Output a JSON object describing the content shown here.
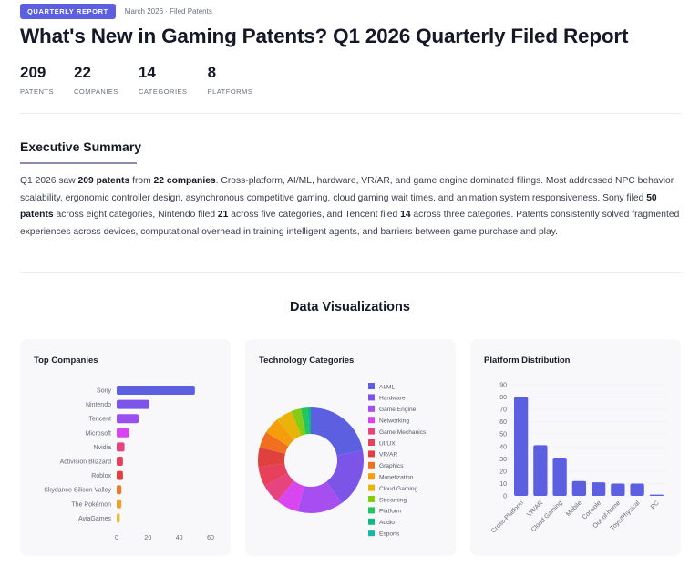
{
  "header": {
    "badge": "QUARTERLY REPORT",
    "meta": "March 2026 · Filed Patents",
    "title": "What's New in Gaming Patents? Q1 2026 Quarterly Filed Report"
  },
  "stats": [
    {
      "value": "209",
      "label": "PATENTS"
    },
    {
      "value": "22",
      "label": "COMPANIES"
    },
    {
      "value": "14",
      "label": "CATEGORIES"
    },
    {
      "value": "8",
      "label": "PLATFORMS"
    }
  ],
  "summary": {
    "title": "Executive Summary",
    "segments": [
      {
        "text": "Q1 2026 saw ",
        "bold": false
      },
      {
        "text": "209 patents",
        "bold": true
      },
      {
        "text": " from ",
        "bold": false
      },
      {
        "text": "22 companies",
        "bold": true
      },
      {
        "text": ". Cross-platform, AI/ML, hardware, VR/AR, and game engine dominated filings. Most addressed NPC behavior scalability, ergonomic controller design, asynchronous competitive gaming, cloud gaming wait times, and animation system responsiveness. Sony filed ",
        "bold": false
      },
      {
        "text": "50 patents",
        "bold": true
      },
      {
        "text": " across eight categories, Nintendo filed ",
        "bold": false
      },
      {
        "text": "21",
        "bold": true
      },
      {
        "text": " across five categories, and Tencent filed ",
        "bold": false
      },
      {
        "text": "14",
        "bold": true
      },
      {
        "text": " across three categories. Patents consistently solved fragmented experiences across devices, computational overhead in training intelligent agents, and barriers between game purchase and play.",
        "bold": false
      }
    ]
  },
  "visualizations": {
    "title": "Data Visualizations"
  },
  "colors": {
    "accent": "#5b5fe0",
    "bar_primary": "#5b5fe0"
  },
  "chart_data": [
    {
      "type": "bar",
      "orientation": "horizontal",
      "title": "Top Companies",
      "categories": [
        "Sony",
        "Nintendo",
        "Tencent",
        "Microsoft",
        "Nvidia",
        "Activision Blizzard",
        "Roblox",
        "Skydance Silicon Valley",
        "The Pokémon",
        "AviaGames"
      ],
      "values": [
        50,
        21,
        14,
        8,
        5,
        4,
        4,
        3,
        3,
        2
      ],
      "colors": [
        "#5b5fe0",
        "#7c55e8",
        "#9b4ff0",
        "#d946ef",
        "#e6447f",
        "#e8405a",
        "#e0413f",
        "#ea7a2a",
        "#efa128",
        "#e8b82c"
      ],
      "xlabel": "",
      "ylabel": "",
      "xticks": [
        0,
        20,
        40,
        60
      ],
      "xlim": [
        0,
        60
      ],
      "grid": false
    },
    {
      "type": "pie",
      "donut": true,
      "title": "Technology Categories",
      "categories": [
        "AI/ML",
        "Hardware",
        "Game Engine",
        "Networking",
        "Game Mechanics",
        "UI/UX",
        "VR/AR",
        "Graphics",
        "Monetization",
        "Cloud Gaming",
        "Streaming",
        "Platform",
        "Audio",
        "Esports"
      ],
      "values": [
        22,
        18,
        14,
        7,
        6,
        6,
        6,
        5,
        5,
        5,
        3,
        2,
        1,
        0
      ],
      "colors": [
        "#5b5fe0",
        "#7c55e8",
        "#a64ef0",
        "#d946ef",
        "#e6447f",
        "#e8405a",
        "#e0413f",
        "#f1701f",
        "#f59e0b",
        "#eab308",
        "#84cc16",
        "#22c55e",
        "#10b981",
        "#14b8a6"
      ],
      "legend_position": "right"
    },
    {
      "type": "bar",
      "orientation": "vertical",
      "title": "Platform Distribution",
      "categories": [
        "Cross-Platform",
        "VR/AR",
        "Cloud Gaming",
        "Mobile",
        "Console",
        "Out-of-home",
        "Toys/Physical",
        "PC"
      ],
      "values": [
        80,
        41,
        31,
        12,
        11,
        10,
        10,
        1
      ],
      "color": "#5b5fe0",
      "xlabel": "",
      "ylabel": "",
      "yticks": [
        0,
        10,
        20,
        30,
        40,
        50,
        60,
        70,
        80,
        90
      ],
      "ylim": [
        0,
        90
      ],
      "grid": true
    }
  ]
}
